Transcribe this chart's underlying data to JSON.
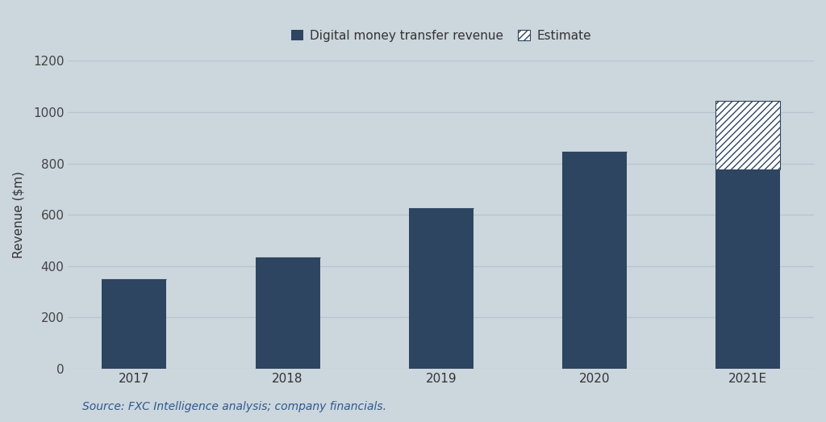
{
  "categories": [
    "2017",
    "2018",
    "2019",
    "2020",
    "2021E"
  ],
  "solid_values": [
    350,
    435,
    625,
    845,
    775
  ],
  "estimate_values": [
    0,
    0,
    0,
    0,
    270
  ],
  "bar_color": "#2d4560",
  "background_color": "#ccd6dd",
  "grid_color": "#b5c5cf",
  "ylabel": "Revenue ($m)",
  "ylim": [
    0,
    1200
  ],
  "yticks": [
    0,
    200,
    400,
    600,
    800,
    1000,
    1200
  ],
  "legend_solid_label": "Digital money transfer revenue",
  "legend_estimate_label": "Estimate",
  "source_text": "Source: FXC Intelligence analysis; company financials.",
  "bar_width": 0.42,
  "legend_fontsize": 11,
  "axis_fontsize": 11,
  "tick_fontsize": 11,
  "source_fontsize": 10
}
